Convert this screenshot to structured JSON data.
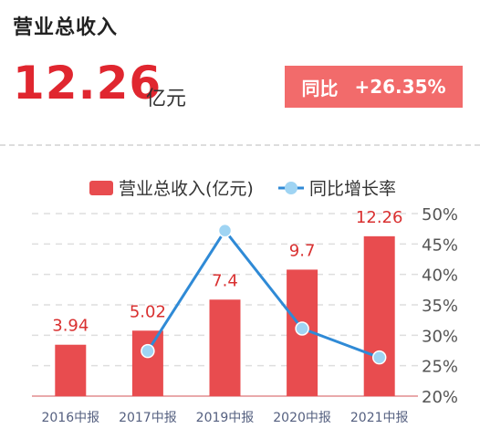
{
  "header": {
    "title": "营业总收入",
    "value": "12.26",
    "unit": "亿元",
    "yoy_label": "同比",
    "yoy_value": "+26.35%"
  },
  "colors": {
    "bar": "#e84c4f",
    "line": "#2f8ad6",
    "marker": "#9fd4f3",
    "value_label": "#d93030",
    "axis_text": "#555555",
    "x_text": "#556080"
  },
  "chart_data": {
    "type": "bar",
    "categories": [
      "2016中报",
      "2017中报",
      "2019中报",
      "2020中报",
      "2021中报"
    ],
    "series": [
      {
        "name": "营业总收入(亿元)",
        "type": "bar",
        "axis": "left",
        "values": [
          3.94,
          5.02,
          7.4,
          9.7,
          12.26
        ]
      },
      {
        "name": "同比增长率",
        "type": "line",
        "axis": "right",
        "values": [
          27.4,
          47.2,
          31.1,
          26.35
        ],
        "x": [
          "2017中报",
          "2019中报",
          "2020中报",
          "2021中报"
        ]
      }
    ],
    "y2_ticks": [
      "50%",
      "45%",
      "40%",
      "35%",
      "30%",
      "25%",
      "20%"
    ],
    "y2lim": [
      20,
      50
    ],
    "ylim": [
      0,
      14
    ],
    "grid": true,
    "legend_position": "top"
  }
}
